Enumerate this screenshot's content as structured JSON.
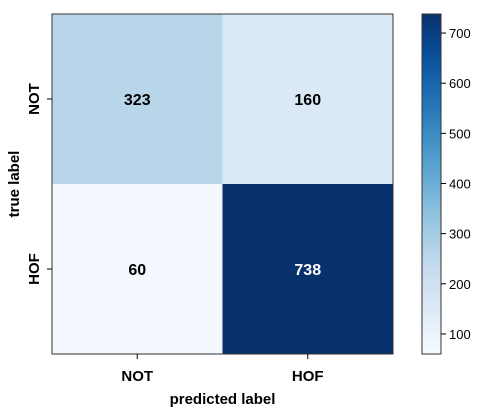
{
  "chart_data": {
    "type": "heatmap",
    "title": "",
    "xlabel": "predicted label",
    "ylabel": "true label",
    "x_categories": [
      "NOT",
      "HOF"
    ],
    "y_categories": [
      "NOT",
      "HOF"
    ],
    "values": [
      [
        323,
        160
      ],
      [
        60,
        738
      ]
    ],
    "colormap": "Blues",
    "colorbar": {
      "range": [
        60,
        738
      ],
      "ticks": [
        100,
        200,
        300,
        400,
        500,
        600,
        700
      ]
    },
    "grid": false
  }
}
